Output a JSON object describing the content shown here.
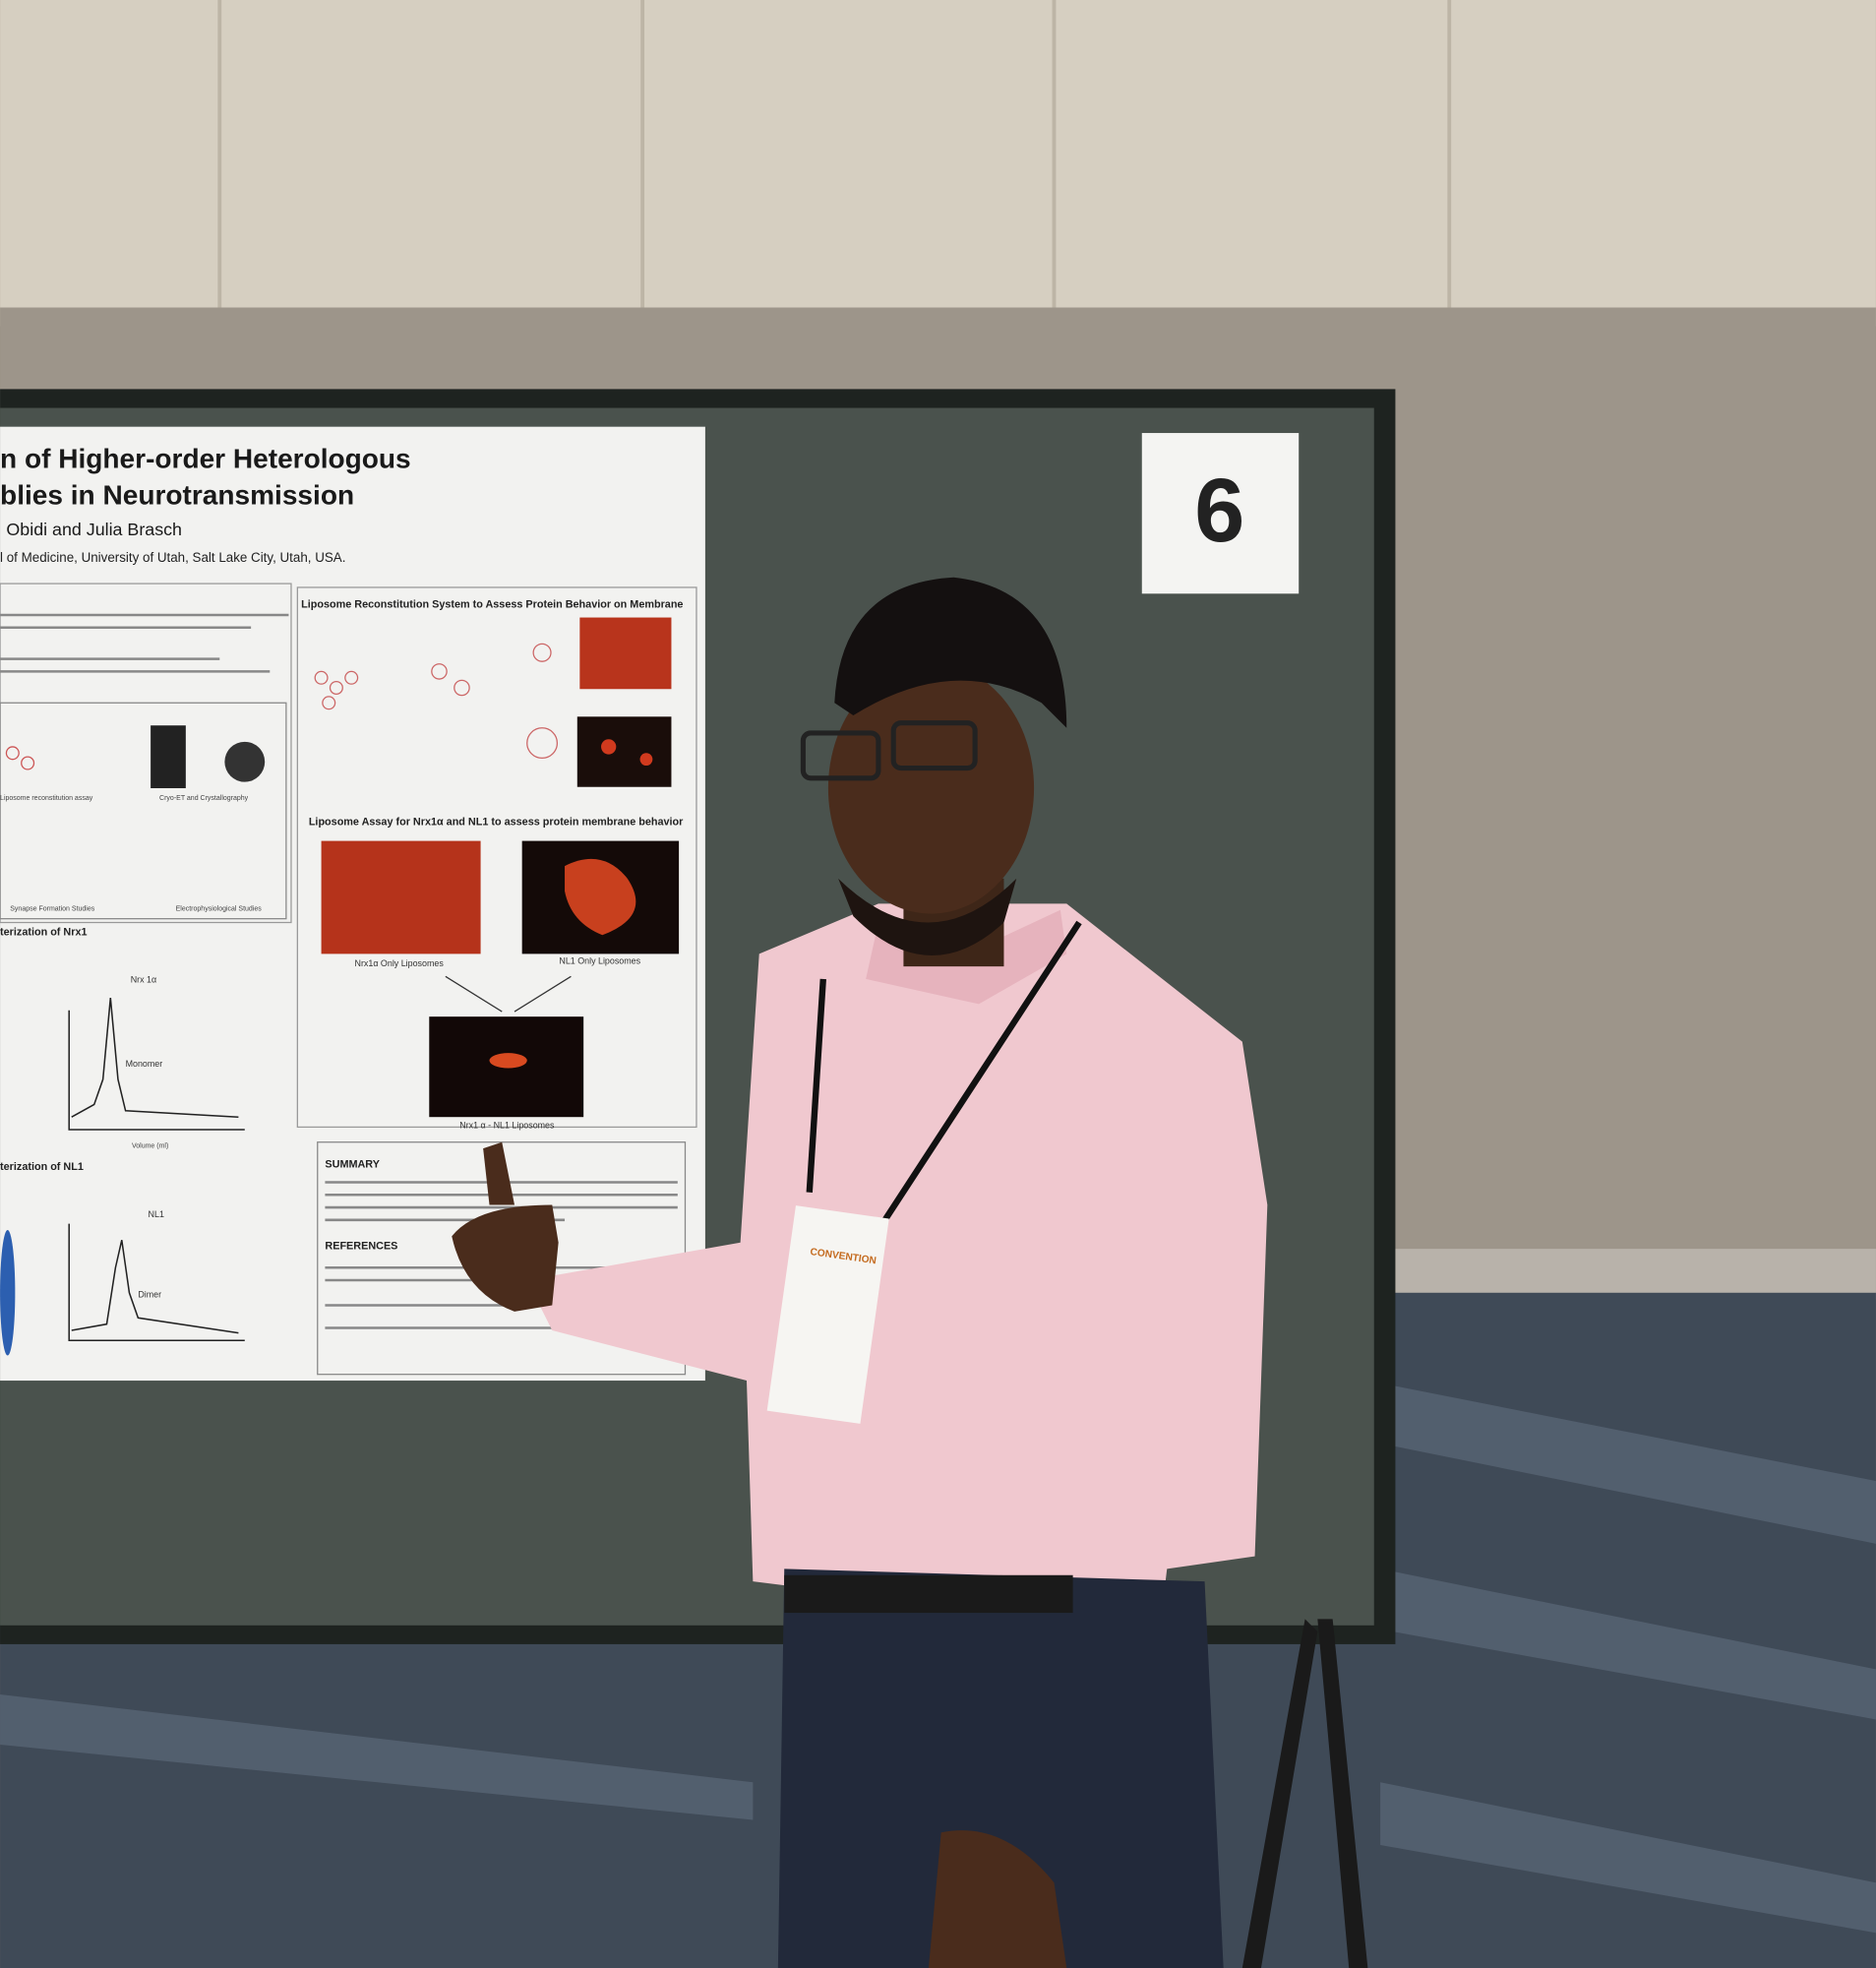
{
  "board": {
    "number": "6"
  },
  "poster": {
    "title": [
      "n of Higher-order Heterologous",
      "blies in Neurotransmission"
    ],
    "authors": "Obidi and Julia Brasch",
    "affiliation": "l of Medicine, University of Utah, Salt Lake City, Utah, USA.",
    "sections": {
      "reconstitution": "Liposome Reconstitution System to Assess Protein Behavior on Membrane",
      "assay": "Liposome Assay for Nrx1α and NL1 to assess protein membrane behavior",
      "nrx1": "terization of Nrx1",
      "nl1": "terization of NL1",
      "summary": "SUMMARY",
      "references": "REFERENCES"
    },
    "image_labels": [
      "Nrx1α Only Liposomes",
      "NL1 Only Liposomes",
      "Nrx1 α - NL1 Liposomes"
    ],
    "workflow": [
      "Liposome reconstitution assay",
      "Cryo-ET and Crystallography",
      "Synapse Formation Studies",
      "Electrophysiological Studies"
    ],
    "chart_labels": {
      "nrx_peak": "Nrx 1α",
      "nrx_state": "Monomer",
      "nl_peak": "NL1",
      "nl_state": "Dimer",
      "x_axis": "Volume (ml)"
    }
  },
  "badge": {
    "event": "CONVENTION"
  }
}
